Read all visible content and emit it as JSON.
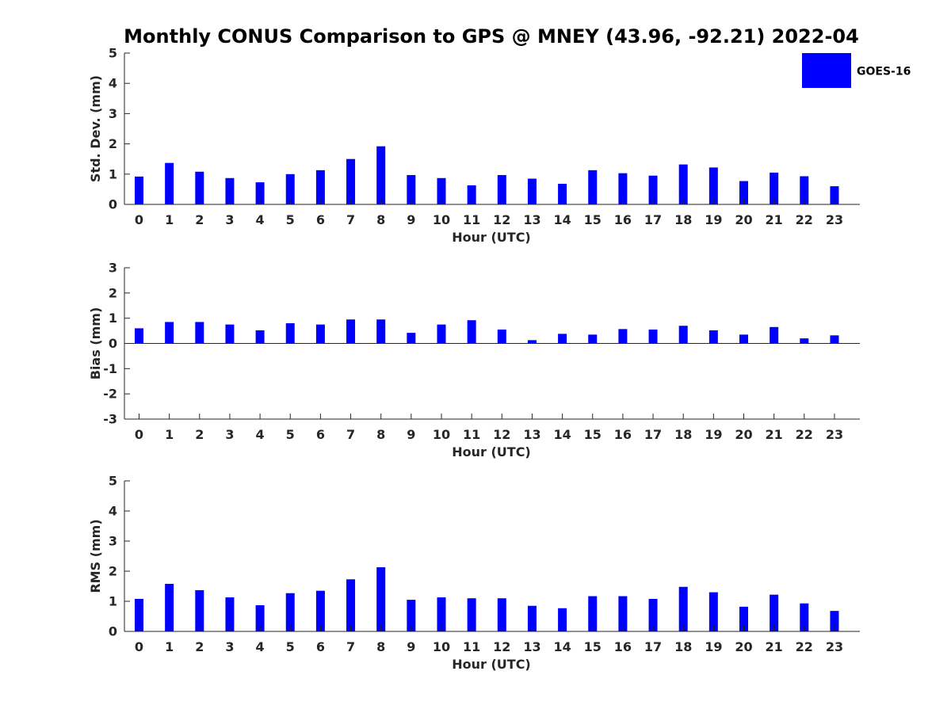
{
  "chart_data": {
    "title": "Monthly CONUS Comparison to GPS @ MNEY (43.96, -92.21) 2022-04",
    "legend": {
      "entries": [
        "GOES-16"
      ],
      "color": "#0000ff",
      "placement": "top-right"
    },
    "bar_color": "#0000ff",
    "panels": [
      {
        "type": "bar",
        "ylabel": "Std. Dev. (mm)",
        "xlabel": "Hour (UTC)",
        "ylim": [
          0,
          5
        ],
        "yticks": [
          0,
          1,
          2,
          3,
          4,
          5
        ],
        "categories": [
          "0",
          "1",
          "2",
          "3",
          "4",
          "5",
          "6",
          "7",
          "8",
          "9",
          "10",
          "11",
          "12",
          "13",
          "14",
          "15",
          "16",
          "17",
          "18",
          "19",
          "20",
          "21",
          "22",
          "23"
        ],
        "series": [
          {
            "name": "GOES-16",
            "values": [
              0.92,
              1.37,
              1.08,
              0.87,
              0.73,
              1.0,
              1.13,
              1.5,
              1.92,
              0.97,
              0.87,
              0.63,
              0.97,
              0.85,
              0.68,
              1.13,
              1.03,
              0.95,
              1.32,
              1.22,
              0.77,
              1.05,
              0.93,
              0.6
            ]
          }
        ]
      },
      {
        "type": "bar",
        "ylabel": "Bias (mm)",
        "xlabel": "Hour (UTC)",
        "ylim": [
          -3,
          3
        ],
        "yticks": [
          -3,
          -2,
          -1,
          0,
          1,
          2,
          3
        ],
        "categories": [
          "0",
          "1",
          "2",
          "3",
          "4",
          "5",
          "6",
          "7",
          "8",
          "9",
          "10",
          "11",
          "12",
          "13",
          "14",
          "15",
          "16",
          "17",
          "18",
          "19",
          "20",
          "21",
          "22",
          "23"
        ],
        "series": [
          {
            "name": "GOES-16",
            "values": [
              0.6,
              0.85,
              0.85,
              0.75,
              0.52,
              0.8,
              0.75,
              0.95,
              0.95,
              0.42,
              0.75,
              0.92,
              0.55,
              0.13,
              0.38,
              0.35,
              0.57,
              0.55,
              0.7,
              0.52,
              0.35,
              0.65,
              0.2,
              0.32
            ]
          }
        ]
      },
      {
        "type": "bar",
        "ylabel": "RMS (mm)",
        "xlabel": "Hour (UTC)",
        "ylim": [
          0,
          5
        ],
        "yticks": [
          0,
          1,
          2,
          3,
          4,
          5
        ],
        "categories": [
          "0",
          "1",
          "2",
          "3",
          "4",
          "5",
          "6",
          "7",
          "8",
          "9",
          "10",
          "11",
          "12",
          "13",
          "14",
          "15",
          "16",
          "17",
          "18",
          "19",
          "20",
          "21",
          "22",
          "23"
        ],
        "series": [
          {
            "name": "GOES-16",
            "values": [
              1.08,
              1.58,
              1.37,
              1.13,
              0.87,
              1.27,
              1.35,
              1.73,
              2.13,
              1.05,
              1.13,
              1.1,
              1.1,
              0.85,
              0.77,
              1.17,
              1.17,
              1.08,
              1.48,
              1.3,
              0.82,
              1.22,
              0.93,
              0.68
            ]
          }
        ]
      }
    ]
  }
}
